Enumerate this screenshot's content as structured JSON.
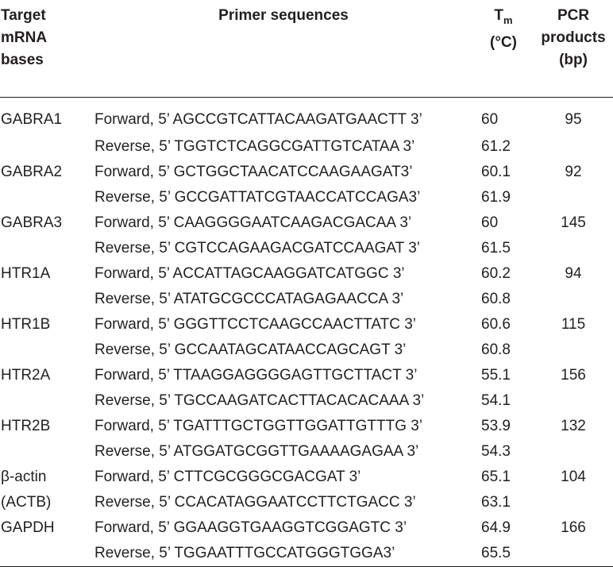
{
  "header": {
    "col1_line1": "Target",
    "col1_line2": "mRNA",
    "col1_line3": "bases",
    "col2": "Primer sequences",
    "col3_T": "T",
    "col3_sub": "m",
    "col3_unit": "(°C)",
    "col4_line1": "PCR",
    "col4_line2": "products",
    "col4_line3": "(bp)"
  },
  "rows": [
    {
      "gene": "GABRA1",
      "forward": "Forward, 5’ AGCCGTCATTACAAGATGAACTT 3’",
      "tm_f": "60",
      "reverse": "Reverse, 5’ TGGTCTCAGGCGATTGTCATAA 3’",
      "tm_r": "61.2",
      "product": "95",
      "gene2": ""
    },
    {
      "gene": "GABRA2",
      "forward": "Forward, 5’ GCTGGCTAACATCCAAGAAGAT3’",
      "tm_f": "60.1",
      "reverse": "Reverse, 5’ GCCGATTATCGTAACCATCCAGA3’",
      "tm_r": "61.9",
      "product": "92",
      "gene2": ""
    },
    {
      "gene": "GABRA3",
      "forward": "Forward, 5’ CAAGGGGAATCAAGACGACAA 3’",
      "tm_f": "60",
      "reverse": "Reverse, 5’ CGTCCAGAAGACGATCCAAGAT 3’",
      "tm_r": "61.5",
      "product": "145",
      "gene2": ""
    },
    {
      "gene": "HTR1A",
      "forward": "Forward, 5’ ACCATTAGCAAGGATCATGGC 3’",
      "tm_f": "60.2",
      "reverse": "Reverse, 5’ ATATGCGCCCATAGAGAACCA 3’",
      "tm_r": "60.8",
      "product": "94",
      "gene2": ""
    },
    {
      "gene": "HTR1B",
      "forward": "Forward, 5’ GGGTTCCTCAAGCCAACTTATC 3’",
      "tm_f": "60.6",
      "reverse": "Reverse, 5’ GCCAATAGCATAACCAGCAGT 3’",
      "tm_r": "60.8",
      "product": "115",
      "gene2": ""
    },
    {
      "gene": "HTR2A",
      "forward": "Forward, 5’ TTAAGGAGGGGAGTTGCTTACT 3’",
      "tm_f": "55.1",
      "reverse": "Reverse, 5’ TGCCAAGATCACTTACACACAAA 3’",
      "tm_r": "54.1",
      "product": "156",
      "gene2": ""
    },
    {
      "gene": "HTR2B",
      "forward": "Forward, 5’ TGATTTGCTGGTTGGATTGTTTG 3’",
      "tm_f": "53.9",
      "reverse": "Reverse, 5’ ATGGATGCGGTTGAAAAGAGAA 3’",
      "tm_r": "54.3",
      "product": "132",
      "gene2": ""
    },
    {
      "gene": "β-actin",
      "forward": "Forward, 5’ CTTCGCGGGCGACGAT 3’",
      "tm_f": "65.1",
      "reverse": "Reverse, 5’ CCACATAGGAATCCTTCTGACC 3’",
      "tm_r": "63.1",
      "product": "104",
      "gene2": "(ACTB)"
    },
    {
      "gene": "GAPDH",
      "forward": "Forward, 5’ GGAAGGTGAAGGTCGGAGTC 3’",
      "tm_f": "64.9",
      "reverse": "Reverse, 5’ TGGAATTTGCCATGGGTGGA3’",
      "tm_r": "65.5",
      "product": "166",
      "gene2": ""
    }
  ]
}
